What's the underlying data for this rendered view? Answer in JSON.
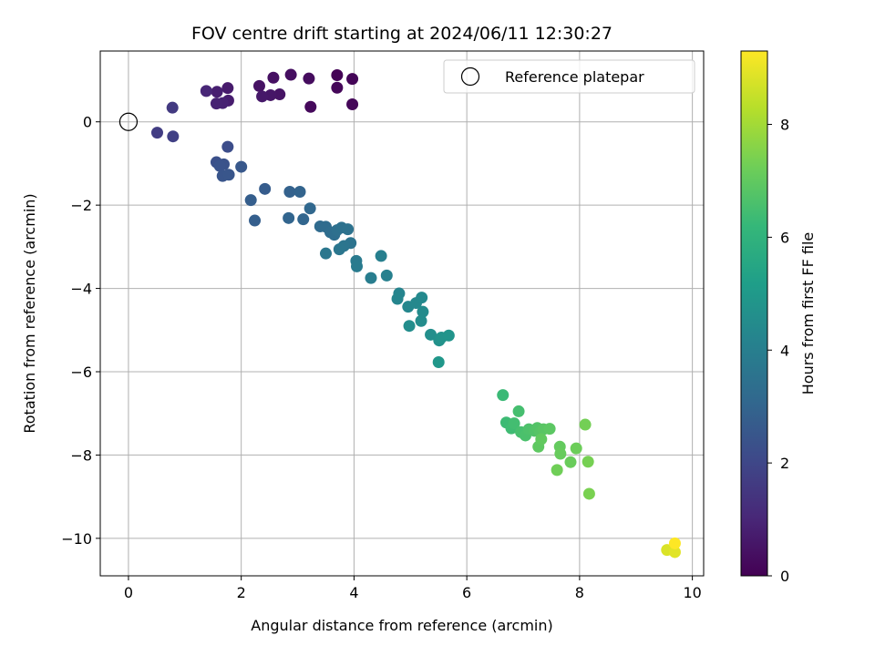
{
  "chart_data": {
    "type": "scatter",
    "title": "FOV centre drift starting at 2024/06/11 12:30:27",
    "xlabel": "Angular distance from reference (arcmin)",
    "ylabel": "Rotation from reference (arcmin)",
    "xlim": [
      -0.5,
      10.2
    ],
    "ylim": [
      -10.9,
      1.7
    ],
    "xticks": [
      0,
      2,
      4,
      6,
      8,
      10
    ],
    "yticks": [
      -10,
      -8,
      -6,
      -4,
      -2,
      0
    ],
    "grid": true,
    "legend": {
      "position": "top-right",
      "entries": [
        "Reference platepar"
      ]
    },
    "reference_point": {
      "name": "Reference platepar",
      "x": 0,
      "y": 0
    },
    "colorbar": {
      "label": "Hours from first FF file",
      "colormap": "viridis",
      "range": [
        0,
        9.3
      ],
      "ticks": [
        0,
        2,
        4,
        6,
        8
      ],
      "colors": [
        "#440154",
        "#482878",
        "#3e4989",
        "#31688e",
        "#26828e",
        "#1f9e89",
        "#35b779",
        "#6ece58",
        "#b5de2b",
        "#fde725"
      ]
    },
    "points": [
      {
        "x": 3.7,
        "y": 1.12,
        "c": 0.05
      },
      {
        "x": 3.97,
        "y": 1.03,
        "c": 0.1
      },
      {
        "x": 3.7,
        "y": 0.82,
        "c": 0.15
      },
      {
        "x": 3.97,
        "y": 0.42,
        "c": 0.15
      },
      {
        "x": 3.23,
        "y": 0.36,
        "c": 0.2
      },
      {
        "x": 3.2,
        "y": 1.04,
        "c": 0.3
      },
      {
        "x": 2.88,
        "y": 1.13,
        "c": 0.35
      },
      {
        "x": 2.57,
        "y": 1.06,
        "c": 0.4
      },
      {
        "x": 2.32,
        "y": 0.86,
        "c": 0.45
      },
      {
        "x": 2.68,
        "y": 0.66,
        "c": 0.5
      },
      {
        "x": 2.52,
        "y": 0.64,
        "c": 0.55
      },
      {
        "x": 2.37,
        "y": 0.61,
        "c": 0.6
      },
      {
        "x": 1.76,
        "y": 0.81,
        "c": 0.7
      },
      {
        "x": 1.77,
        "y": 0.51,
        "c": 0.75
      },
      {
        "x": 1.57,
        "y": 0.72,
        "c": 0.8
      },
      {
        "x": 1.67,
        "y": 0.45,
        "c": 0.85
      },
      {
        "x": 1.56,
        "y": 0.44,
        "c": 0.9
      },
      {
        "x": 1.38,
        "y": 0.74,
        "c": 1.0
      },
      {
        "x": 0.78,
        "y": 0.34,
        "c": 1.6
      },
      {
        "x": 0.51,
        "y": -0.26,
        "c": 1.7
      },
      {
        "x": 0.79,
        "y": -0.35,
        "c": 1.8
      },
      {
        "x": 1.76,
        "y": -0.6,
        "c": 2.2
      },
      {
        "x": 1.56,
        "y": -0.97,
        "c": 2.3
      },
      {
        "x": 1.69,
        "y": -1.02,
        "c": 2.35
      },
      {
        "x": 1.62,
        "y": -1.06,
        "c": 2.4
      },
      {
        "x": 1.67,
        "y": -1.3,
        "c": 2.45
      },
      {
        "x": 1.78,
        "y": -1.27,
        "c": 2.5
      },
      {
        "x": 2.0,
        "y": -1.08,
        "c": 2.55
      },
      {
        "x": 2.42,
        "y": -1.61,
        "c": 2.7
      },
      {
        "x": 2.17,
        "y": -1.88,
        "c": 2.75
      },
      {
        "x": 2.24,
        "y": -2.37,
        "c": 2.8
      },
      {
        "x": 2.86,
        "y": -1.68,
        "c": 2.9
      },
      {
        "x": 3.04,
        "y": -1.68,
        "c": 2.95
      },
      {
        "x": 2.84,
        "y": -2.31,
        "c": 3.0
      },
      {
        "x": 3.1,
        "y": -2.34,
        "c": 3.05
      },
      {
        "x": 3.22,
        "y": -2.08,
        "c": 3.1
      },
      {
        "x": 3.4,
        "y": -2.51,
        "c": 3.2
      },
      {
        "x": 3.5,
        "y": -2.52,
        "c": 3.25
      },
      {
        "x": 3.58,
        "y": -2.65,
        "c": 3.3
      },
      {
        "x": 3.65,
        "y": -2.71,
        "c": 3.35
      },
      {
        "x": 3.7,
        "y": -2.6,
        "c": 3.4
      },
      {
        "x": 3.78,
        "y": -2.54,
        "c": 3.45
      },
      {
        "x": 3.89,
        "y": -2.58,
        "c": 3.5
      },
      {
        "x": 3.94,
        "y": -2.91,
        "c": 3.55
      },
      {
        "x": 3.82,
        "y": -2.98,
        "c": 3.6
      },
      {
        "x": 3.74,
        "y": -3.06,
        "c": 3.65
      },
      {
        "x": 3.5,
        "y": -3.16,
        "c": 3.7
      },
      {
        "x": 4.04,
        "y": -3.34,
        "c": 3.8
      },
      {
        "x": 4.05,
        "y": -3.47,
        "c": 3.85
      },
      {
        "x": 4.3,
        "y": -3.75,
        "c": 3.95
      },
      {
        "x": 4.48,
        "y": -3.22,
        "c": 4.0
      },
      {
        "x": 4.58,
        "y": -3.69,
        "c": 4.05
      },
      {
        "x": 4.8,
        "y": -4.12,
        "c": 4.2
      },
      {
        "x": 4.77,
        "y": -4.25,
        "c": 4.25
      },
      {
        "x": 4.96,
        "y": -4.44,
        "c": 4.3
      },
      {
        "x": 5.1,
        "y": -4.35,
        "c": 4.35
      },
      {
        "x": 5.2,
        "y": -4.22,
        "c": 4.4
      },
      {
        "x": 5.22,
        "y": -4.56,
        "c": 4.45
      },
      {
        "x": 5.19,
        "y": -4.78,
        "c": 4.5
      },
      {
        "x": 4.98,
        "y": -4.9,
        "c": 4.55
      },
      {
        "x": 5.36,
        "y": -5.11,
        "c": 4.6
      },
      {
        "x": 5.51,
        "y": -5.25,
        "c": 4.7
      },
      {
        "x": 5.55,
        "y": -5.18,
        "c": 4.75
      },
      {
        "x": 5.68,
        "y": -5.13,
        "c": 4.8
      },
      {
        "x": 5.5,
        "y": -5.77,
        "c": 4.9
      },
      {
        "x": 6.64,
        "y": -6.56,
        "c": 6.3
      },
      {
        "x": 6.7,
        "y": -7.22,
        "c": 6.35
      },
      {
        "x": 6.79,
        "y": -7.36,
        "c": 6.4
      },
      {
        "x": 6.84,
        "y": -7.24,
        "c": 6.45
      },
      {
        "x": 6.92,
        "y": -6.95,
        "c": 6.5
      },
      {
        "x": 6.96,
        "y": -7.45,
        "c": 6.55
      },
      {
        "x": 7.04,
        "y": -7.53,
        "c": 6.6
      },
      {
        "x": 7.1,
        "y": -7.38,
        "c": 6.65
      },
      {
        "x": 7.2,
        "y": -7.42,
        "c": 6.7
      },
      {
        "x": 7.25,
        "y": -7.35,
        "c": 6.75
      },
      {
        "x": 7.3,
        "y": -7.45,
        "c": 6.8
      },
      {
        "x": 7.36,
        "y": -7.38,
        "c": 6.85
      },
      {
        "x": 7.47,
        "y": -7.37,
        "c": 6.9
      },
      {
        "x": 7.27,
        "y": -7.8,
        "c": 6.95
      },
      {
        "x": 7.32,
        "y": -7.62,
        "c": 7.0
      },
      {
        "x": 7.65,
        "y": -7.8,
        "c": 7.05
      },
      {
        "x": 7.66,
        "y": -7.97,
        "c": 7.1
      },
      {
        "x": 7.84,
        "y": -8.17,
        "c": 7.15
      },
      {
        "x": 7.94,
        "y": -7.84,
        "c": 7.2
      },
      {
        "x": 7.6,
        "y": -8.36,
        "c": 7.25
      },
      {
        "x": 8.1,
        "y": -7.27,
        "c": 7.3
      },
      {
        "x": 8.15,
        "y": -8.16,
        "c": 7.35
      },
      {
        "x": 8.17,
        "y": -8.93,
        "c": 7.4
      },
      {
        "x": 9.55,
        "y": -10.28,
        "c": 8.8
      },
      {
        "x": 9.69,
        "y": -10.33,
        "c": 8.9
      },
      {
        "x": 9.69,
        "y": -10.12,
        "c": 9.3
      }
    ]
  }
}
